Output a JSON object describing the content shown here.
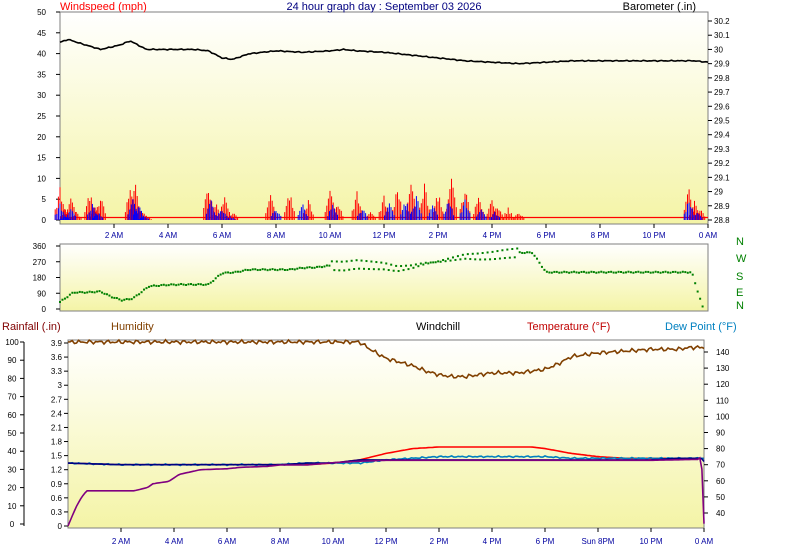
{
  "chart_data": [
    {
      "type": "line",
      "title": "24 hour graph day : September 03 2026",
      "ylabel_left": "Windspeed (mph)",
      "ylabel_right": "Barometer (.in)",
      "ylim_left": [
        0,
        50
      ],
      "yticks_left": [
        "0",
        "5",
        "10",
        "15",
        "20",
        "25",
        "30",
        "35",
        "40",
        "45",
        "50"
      ],
      "ylim_right": [
        28.8,
        30.2
      ],
      "yticks_right": [
        "28.8",
        "28.9",
        "29",
        "29.1",
        "29.2",
        "29.3",
        "29.4",
        "29.5",
        "29.6",
        "29.7",
        "29.8",
        "29.9",
        "30",
        "30.1",
        "30.2"
      ],
      "xlim": [
        0,
        24
      ],
      "xticks": [
        "2 AM",
        "4 AM",
        "6 AM",
        "8 AM",
        "10 AM",
        "12 PM",
        "2 PM",
        "4 PM",
        "6 PM",
        "8 PM",
        "10 PM",
        "0 AM"
      ],
      "series": [
        {
          "name": "Barometer",
          "axis": "right",
          "color": "#000000",
          "x": [
            0,
            0.3,
            0.8,
            1.5,
            2.2,
            2.6,
            3.2,
            4,
            5,
            5.5,
            6,
            6.4,
            7,
            8,
            9,
            10,
            10.5,
            11,
            12,
            13,
            14,
            15,
            16,
            17,
            18,
            19,
            20,
            21,
            22,
            23,
            23.5,
            24
          ],
          "values": [
            30.05,
            30.07,
            30.04,
            30.0,
            30.03,
            30.06,
            30.0,
            30.0,
            30.0,
            29.99,
            29.94,
            29.93,
            29.97,
            29.99,
            29.98,
            29.99,
            30.0,
            29.99,
            29.98,
            29.96,
            29.94,
            29.92,
            29.91,
            29.9,
            29.91,
            29.92,
            29.92,
            29.92,
            29.92,
            29.92,
            29.92,
            29.91
          ]
        },
        {
          "name": "Wind gust",
          "axis": "left",
          "color": "#ff0000",
          "x": [
            0,
            0.2,
            0.4,
            0.6,
            1.1,
            1.3,
            1.5,
            2.6,
            2.8,
            3.0,
            3.2,
            5.5,
            5.8,
            6.1,
            6.4,
            7.8,
            8.5,
            9.2,
            10.0,
            10.3,
            11.0,
            11.5,
            12.0,
            12.5,
            13.0,
            13.5,
            14.0,
            14.5,
            15.0,
            15.5,
            16.0,
            16.2,
            16.6,
            17.0,
            23.3,
            23.5,
            23.7
          ],
          "values": [
            8,
            3,
            6,
            2,
            7,
            3,
            6,
            8,
            9,
            3,
            1,
            9,
            4,
            6,
            2,
            6,
            7,
            5,
            8,
            4,
            7,
            3,
            6,
            8,
            10,
            9,
            7,
            10,
            8,
            6,
            5,
            4,
            3,
            2,
            8,
            5,
            3
          ]
        },
        {
          "name": "Wind speed",
          "axis": "left",
          "color": "#0000ff",
          "x": [
            0,
            0.2,
            0.4,
            1.2,
            1.4,
            2.7,
            2.9,
            3.1,
            5.6,
            6.0,
            6.3,
            8.0,
            9.0,
            10.1,
            11.2,
            12.2,
            12.8,
            13.2,
            13.8,
            14.4,
            15.0,
            15.6,
            16.1,
            23.3,
            23.6
          ],
          "values": [
            4,
            1,
            3,
            4,
            2,
            5,
            4,
            1,
            5,
            3,
            1,
            3,
            4,
            4,
            3,
            4,
            5,
            6,
            4,
            5,
            5,
            4,
            2,
            5,
            2
          ]
        }
      ]
    },
    {
      "type": "scatter",
      "title": "",
      "ylabel_left": "",
      "ylim_left": [
        0,
        360
      ],
      "yticks_left": [
        "0",
        "90",
        "180",
        "270",
        "360"
      ],
      "yticks_right": [
        "N",
        "E",
        "S",
        "W",
        "N"
      ],
      "xlim": [
        0,
        24
      ],
      "series": [
        {
          "name": "Wind direction",
          "color": "#008000",
          "x": [
            0,
            0.5,
            1.0,
            1.5,
            1.9,
            2.3,
            2.7,
            3.3,
            4.0,
            4.5,
            5.0,
            5.5,
            6.0,
            6.5,
            7.0,
            7.5,
            8.0,
            8.5,
            9.0,
            9.5,
            10.0,
            10.5,
            11.0,
            11.5,
            12.0,
            12.5,
            13.0,
            13.5,
            14.0,
            14.5,
            15.0,
            15.5,
            16.0,
            16.5,
            17.0,
            17.5,
            18.0,
            19.0,
            20.0,
            21.0,
            22.0,
            23.0,
            23.4,
            23.8
          ],
          "values": [
            40,
            95,
            95,
            100,
            70,
            50,
            60,
            130,
            138,
            140,
            140,
            140,
            205,
            210,
            225,
            225,
            225,
            225,
            235,
            238,
            248,
            245,
            255,
            250,
            245,
            230,
            240,
            260,
            270,
            285,
            300,
            300,
            305,
            315,
            322,
            322,
            210,
            210,
            210,
            210,
            210,
            210,
            210,
            12
          ]
        }
      ]
    },
    {
      "type": "line",
      "title": "",
      "ylabel_left": "Rainfall (.in)",
      "labels": [
        "Rainfall (.in)",
        "Humidity",
        "Windchill",
        "Temperature (°F)",
        "Dew Point (°F)"
      ],
      "ylim_rain": [
        0,
        3.9
      ],
      "yticks_rain": [
        "0",
        "0.3",
        "0.6",
        "0.9",
        "1.2",
        "1.5",
        "1.8",
        "2.1",
        "2.4",
        "2.7",
        "3",
        "3.3",
        "3.6",
        "3.9"
      ],
      "ylim_humidity": [
        0,
        100
      ],
      "yticks_humidity": [
        "0",
        "10",
        "20",
        "30",
        "40",
        "50",
        "60",
        "70",
        "80",
        "90",
        "100"
      ],
      "ylim_temp": [
        30,
        145
      ],
      "yticks_temp": [
        "40",
        "50",
        "60",
        "70",
        "80",
        "90",
        "100",
        "110",
        "120",
        "130",
        "140"
      ],
      "xlim": [
        0,
        24
      ],
      "xticks": [
        "2 AM",
        "4 AM",
        "6 AM",
        "8 AM",
        "10 AM",
        "12 PM",
        "2 PM",
        "4 PM",
        "6 PM",
        "Sun 8PM",
        "10 PM",
        "0 AM"
      ],
      "series": [
        {
          "name": "Humidity",
          "axis": "humidity",
          "color": "#804000",
          "x": [
            0,
            5,
            10,
            11,
            11.4,
            12,
            13,
            13.5,
            14,
            14.5,
            15,
            15.5,
            16,
            17,
            17.5,
            18,
            18.5,
            19,
            20,
            21,
            22,
            23,
            23.5,
            24
          ],
          "values": [
            100,
            100,
            100,
            100,
            96,
            91,
            87,
            84,
            82,
            81,
            81,
            82,
            83,
            83,
            84,
            85,
            88,
            92,
            94,
            95,
            96,
            96,
            97,
            97
          ]
        },
        {
          "name": "Temperature",
          "axis": "temp",
          "color": "#ff0000",
          "x": [
            0,
            2,
            4,
            6,
            8,
            9,
            10,
            10.5,
            11,
            12,
            13,
            14,
            15,
            16,
            17,
            17.5,
            18,
            19,
            20,
            21,
            22,
            23,
            23.9,
            24
          ],
          "values": [
            71,
            70,
            70,
            70,
            70,
            70,
            71,
            72,
            73,
            77,
            80,
            81,
            81,
            81,
            81,
            81,
            80,
            77,
            75,
            74,
            74,
            74,
            74,
            74
          ]
        },
        {
          "name": "Dew Point",
          "axis": "temp",
          "color": "#0080c0",
          "x": [
            0,
            2,
            4,
            6,
            8,
            9,
            10,
            11,
            12,
            13,
            14,
            15,
            16,
            17,
            18,
            19,
            20,
            21,
            22,
            23,
            23.9,
            24
          ],
          "values": [
            71,
            70,
            70,
            70,
            70,
            71,
            71,
            71,
            73,
            74,
            75,
            75,
            75,
            75,
            75,
            74,
            74,
            74,
            74,
            74,
            74,
            74
          ]
        },
        {
          "name": "Windchill",
          "axis": "temp",
          "color": "#000080",
          "x": [
            0,
            2,
            4,
            6,
            8,
            9,
            10,
            10.5,
            11,
            12,
            14,
            16,
            18,
            20,
            22,
            23,
            23.9,
            24
          ],
          "values": [
            71,
            70,
            70,
            70,
            70,
            71,
            71,
            72,
            73,
            73,
            73,
            73,
            73,
            73,
            73,
            74,
            74,
            72
          ]
        },
        {
          "name": "Rainfall",
          "axis": "rain",
          "color": "#800080",
          "x": [
            0,
            0.3,
            0.5,
            0.7,
            2.5,
            3.0,
            3.2,
            3.8,
            4.2,
            5,
            6,
            6.5,
            7.5,
            8,
            9,
            10,
            11,
            12,
            14,
            16,
            18,
            20,
            22,
            23.8,
            23.9,
            24
          ],
          "values": [
            0,
            0.4,
            0.6,
            0.75,
            0.75,
            0.82,
            0.9,
            0.95,
            1.1,
            1.2,
            1.22,
            1.25,
            1.27,
            1.3,
            1.3,
            1.35,
            1.38,
            1.4,
            1.4,
            1.4,
            1.4,
            1.4,
            1.4,
            1.42,
            1.5,
            0.05
          ]
        }
      ]
    }
  ],
  "colors": {
    "gradient_top": "#ffffff",
    "gradient_bottom": "#f4f4a6",
    "axis_blue": "#0000a0",
    "axis_dark": "#000000",
    "direction_green": "#008000"
  }
}
